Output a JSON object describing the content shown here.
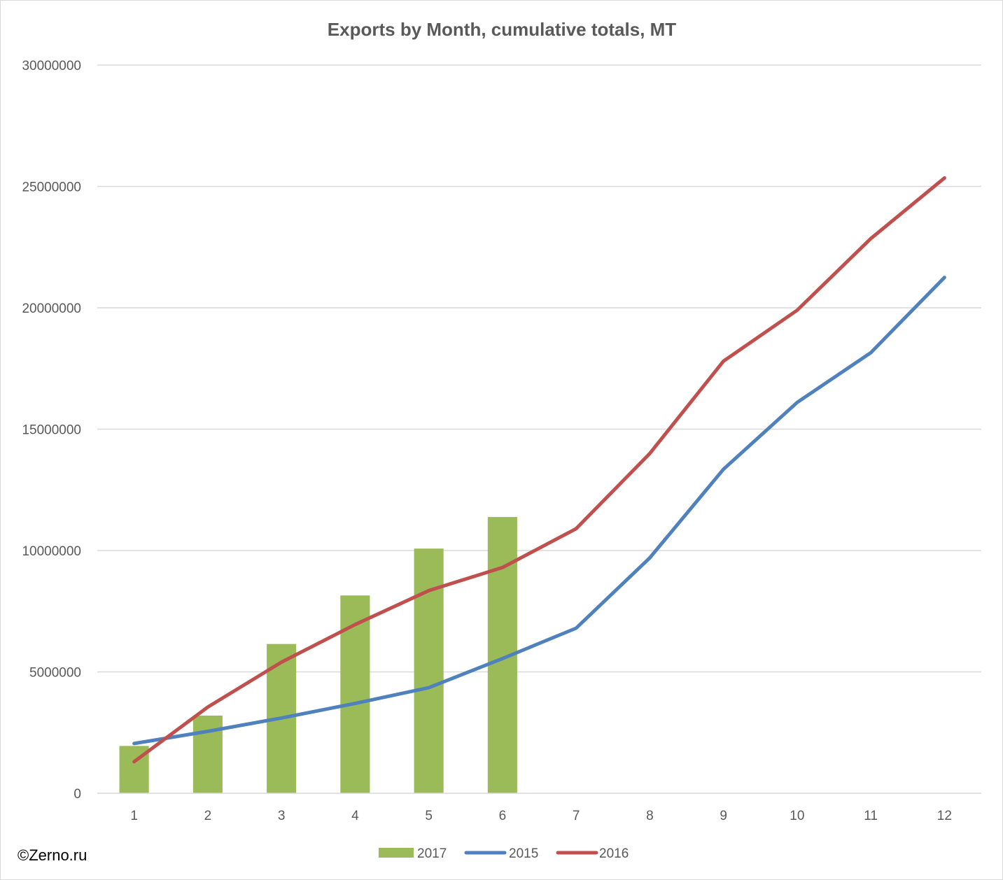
{
  "chart_data": {
    "type": "bar",
    "title": "Exports by Month, cumulative totals, MT",
    "xlabel": "",
    "ylabel": "",
    "categories": [
      "1",
      "2",
      "3",
      "4",
      "5",
      "6",
      "7",
      "8",
      "9",
      "10",
      "11",
      "12"
    ],
    "ylim": [
      0,
      30000000
    ],
    "yticks": [
      "0",
      "5000000",
      "10000000",
      "15000000",
      "20000000",
      "25000000",
      "30000000"
    ],
    "grid": true,
    "legend_position": "bottom",
    "series": [
      {
        "name": "2017",
        "type": "bar",
        "color": "#9bbb59",
        "values": [
          1950000,
          3200000,
          6150000,
          8150000,
          10080000,
          11380000,
          null,
          null,
          null,
          null,
          null,
          null
        ]
      },
      {
        "name": "2015",
        "type": "line",
        "color": "#4f81bd",
        "values": [
          2050000,
          2550000,
          3100000,
          3700000,
          4350000,
          5550000,
          6800000,
          9700000,
          13350000,
          16100000,
          18150000,
          21250000
        ]
      },
      {
        "name": "2016",
        "type": "line",
        "color": "#c0504d",
        "values": [
          1300000,
          3550000,
          5400000,
          6950000,
          8350000,
          9300000,
          10900000,
          14000000,
          17800000,
          19900000,
          22850000,
          25350000
        ]
      }
    ]
  },
  "credit": "©Zerno.ru"
}
